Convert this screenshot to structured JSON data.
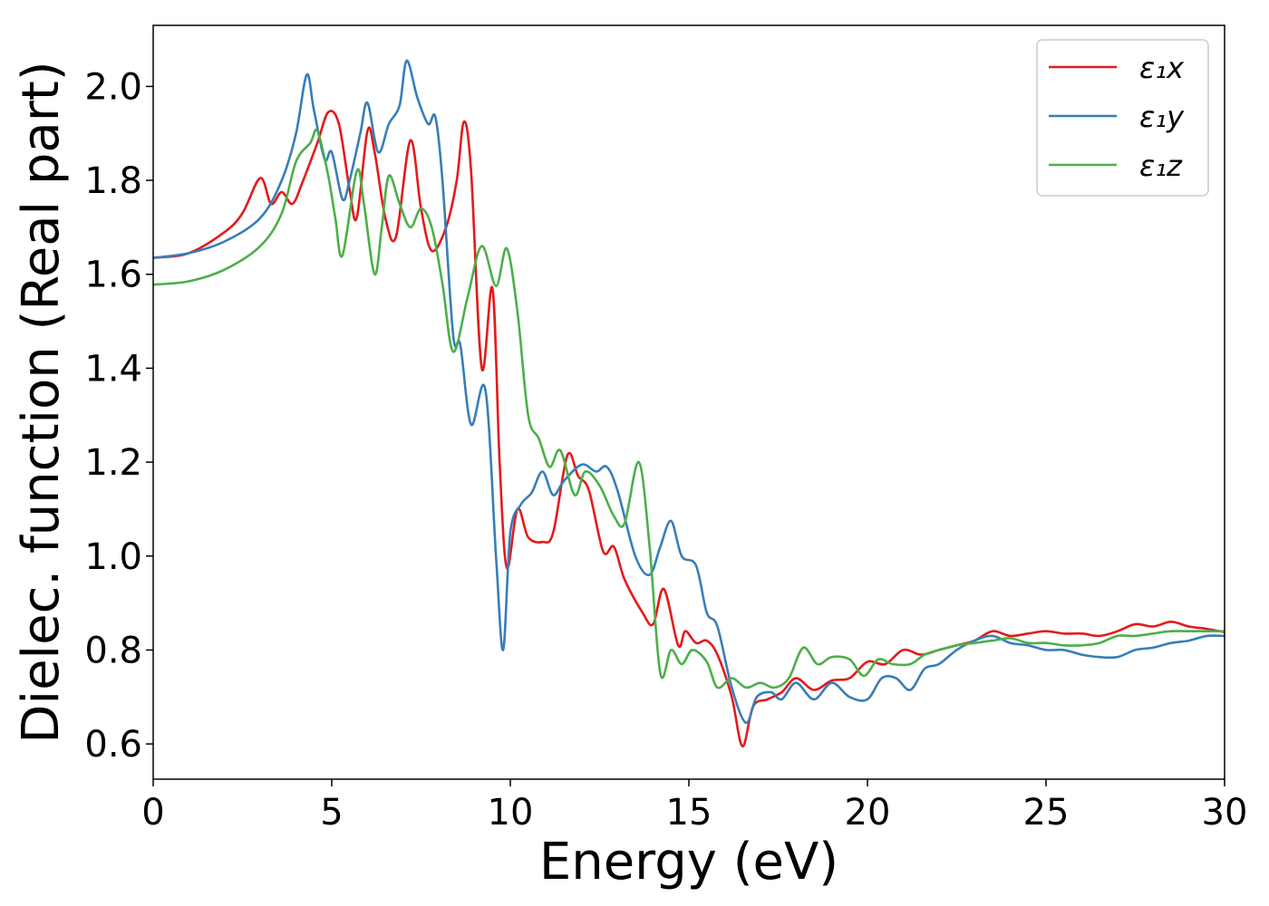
{
  "chart_data": {
    "type": "line",
    "title": "",
    "xlabel": "Energy (eV)",
    "ylabel": "Dielec. function (Real part)",
    "xlim": [
      0,
      30
    ],
    "ylim": [
      0.525,
      2.13
    ],
    "xticks": [
      0,
      5,
      10,
      15,
      20,
      25,
      30
    ],
    "yticks": [
      0.6,
      0.8,
      1.0,
      1.2,
      1.4,
      1.6,
      1.8,
      2.0
    ],
    "ytick_labels": [
      "0.6",
      "0.8",
      "1.0",
      "1.2",
      "1.4",
      "1.6",
      "1.8",
      "2.0"
    ],
    "grid": false,
    "legend_position": "top-right",
    "series": [
      {
        "name": "ε₁x",
        "color": "#e41a1c",
        "points": [
          [
            0,
            1.635
          ],
          [
            1,
            1.645
          ],
          [
            2,
            1.69
          ],
          [
            2.5,
            1.73
          ],
          [
            3,
            1.805
          ],
          [
            3.3,
            1.75
          ],
          [
            3.6,
            1.775
          ],
          [
            3.9,
            1.75
          ],
          [
            4.2,
            1.8
          ],
          [
            4.6,
            1.88
          ],
          [
            4.9,
            1.945
          ],
          [
            5.2,
            1.92
          ],
          [
            5.5,
            1.78
          ],
          [
            5.7,
            1.72
          ],
          [
            6.0,
            1.905
          ],
          [
            6.2,
            1.86
          ],
          [
            6.5,
            1.72
          ],
          [
            6.8,
            1.68
          ],
          [
            7.2,
            1.885
          ],
          [
            7.5,
            1.74
          ],
          [
            7.8,
            1.65
          ],
          [
            8.2,
            1.7
          ],
          [
            8.5,
            1.8
          ],
          [
            8.7,
            1.925
          ],
          [
            8.9,
            1.82
          ],
          [
            9.2,
            1.4
          ],
          [
            9.5,
            1.57
          ],
          [
            9.7,
            1.2
          ],
          [
            9.9,
            0.975
          ],
          [
            10.2,
            1.1
          ],
          [
            10.5,
            1.04
          ],
          [
            10.9,
            1.03
          ],
          [
            11.2,
            1.05
          ],
          [
            11.6,
            1.215
          ],
          [
            11.9,
            1.17
          ],
          [
            12.2,
            1.14
          ],
          [
            12.6,
            1.01
          ],
          [
            12.9,
            1.02
          ],
          [
            13.2,
            0.95
          ],
          [
            13.7,
            0.88
          ],
          [
            14.0,
            0.855
          ],
          [
            14.3,
            0.93
          ],
          [
            14.7,
            0.81
          ],
          [
            14.9,
            0.84
          ],
          [
            15.2,
            0.815
          ],
          [
            15.5,
            0.82
          ],
          [
            15.8,
            0.79
          ],
          [
            16.2,
            0.7
          ],
          [
            16.5,
            0.595
          ],
          [
            16.8,
            0.68
          ],
          [
            17.2,
            0.695
          ],
          [
            17.6,
            0.71
          ],
          [
            18.0,
            0.74
          ],
          [
            18.5,
            0.715
          ],
          [
            19.0,
            0.735
          ],
          [
            19.5,
            0.74
          ],
          [
            20.0,
            0.775
          ],
          [
            20.5,
            0.77
          ],
          [
            21.0,
            0.8
          ],
          [
            21.5,
            0.79
          ],
          [
            22.0,
            0.8
          ],
          [
            22.5,
            0.81
          ],
          [
            23.0,
            0.82
          ],
          [
            23.5,
            0.84
          ],
          [
            24.0,
            0.83
          ],
          [
            24.5,
            0.835
          ],
          [
            25.0,
            0.84
          ],
          [
            25.5,
            0.835
          ],
          [
            26.0,
            0.835
          ],
          [
            26.5,
            0.83
          ],
          [
            27.0,
            0.84
          ],
          [
            27.5,
            0.855
          ],
          [
            28.0,
            0.85
          ],
          [
            28.5,
            0.86
          ],
          [
            29.0,
            0.85
          ],
          [
            29.5,
            0.845
          ],
          [
            30.0,
            0.838
          ]
        ]
      },
      {
        "name": "ε₁y",
        "color": "#377eb8",
        "points": [
          [
            0,
            1.635
          ],
          [
            1,
            1.645
          ],
          [
            2,
            1.67
          ],
          [
            3,
            1.72
          ],
          [
            3.6,
            1.8
          ],
          [
            4.0,
            1.9
          ],
          [
            4.3,
            2.025
          ],
          [
            4.5,
            1.95
          ],
          [
            4.8,
            1.845
          ],
          [
            5.0,
            1.86
          ],
          [
            5.3,
            1.76
          ],
          [
            5.5,
            1.8
          ],
          [
            5.8,
            1.9
          ],
          [
            6.0,
            1.965
          ],
          [
            6.3,
            1.86
          ],
          [
            6.6,
            1.92
          ],
          [
            6.9,
            1.96
          ],
          [
            7.1,
            2.055
          ],
          [
            7.4,
            1.975
          ],
          [
            7.7,
            1.92
          ],
          [
            7.9,
            1.935
          ],
          [
            8.1,
            1.8
          ],
          [
            8.4,
            1.47
          ],
          [
            8.6,
            1.45
          ],
          [
            8.9,
            1.28
          ],
          [
            9.3,
            1.355
          ],
          [
            9.6,
            1.0
          ],
          [
            9.8,
            0.8
          ],
          [
            10.0,
            1.05
          ],
          [
            10.3,
            1.11
          ],
          [
            10.6,
            1.135
          ],
          [
            10.9,
            1.18
          ],
          [
            11.2,
            1.13
          ],
          [
            11.5,
            1.16
          ],
          [
            12.0,
            1.195
          ],
          [
            12.4,
            1.18
          ],
          [
            12.7,
            1.19
          ],
          [
            13.0,
            1.14
          ],
          [
            13.5,
            1.0
          ],
          [
            13.9,
            0.96
          ],
          [
            14.2,
            1.02
          ],
          [
            14.5,
            1.075
          ],
          [
            14.8,
            1.0
          ],
          [
            15.2,
            0.98
          ],
          [
            15.5,
            0.88
          ],
          [
            15.8,
            0.85
          ],
          [
            16.2,
            0.72
          ],
          [
            16.6,
            0.645
          ],
          [
            16.9,
            0.7
          ],
          [
            17.3,
            0.71
          ],
          [
            17.6,
            0.695
          ],
          [
            18.0,
            0.73
          ],
          [
            18.5,
            0.695
          ],
          [
            19.0,
            0.73
          ],
          [
            19.5,
            0.7
          ],
          [
            20.0,
            0.695
          ],
          [
            20.4,
            0.74
          ],
          [
            20.8,
            0.74
          ],
          [
            21.2,
            0.715
          ],
          [
            21.6,
            0.76
          ],
          [
            22.0,
            0.77
          ],
          [
            22.5,
            0.8
          ],
          [
            23.0,
            0.82
          ],
          [
            23.5,
            0.83
          ],
          [
            24.0,
            0.815
          ],
          [
            24.5,
            0.81
          ],
          [
            25.0,
            0.8
          ],
          [
            25.5,
            0.8
          ],
          [
            26.0,
            0.79
          ],
          [
            26.5,
            0.785
          ],
          [
            27.0,
            0.785
          ],
          [
            27.5,
            0.8
          ],
          [
            28.0,
            0.805
          ],
          [
            28.5,
            0.815
          ],
          [
            29.0,
            0.82
          ],
          [
            29.5,
            0.83
          ],
          [
            30.0,
            0.83
          ]
        ]
      },
      {
        "name": "ε₁z",
        "color": "#4daf4a",
        "points": [
          [
            0,
            1.578
          ],
          [
            1,
            1.585
          ],
          [
            2,
            1.61
          ],
          [
            3,
            1.66
          ],
          [
            3.6,
            1.73
          ],
          [
            4.0,
            1.84
          ],
          [
            4.4,
            1.88
          ],
          [
            4.6,
            1.905
          ],
          [
            4.9,
            1.81
          ],
          [
            5.1,
            1.72
          ],
          [
            5.3,
            1.64
          ],
          [
            5.7,
            1.82
          ],
          [
            5.9,
            1.75
          ],
          [
            6.2,
            1.6
          ],
          [
            6.4,
            1.7
          ],
          [
            6.6,
            1.81
          ],
          [
            6.9,
            1.75
          ],
          [
            7.2,
            1.7
          ],
          [
            7.5,
            1.74
          ],
          [
            7.8,
            1.7
          ],
          [
            8.1,
            1.58
          ],
          [
            8.4,
            1.435
          ],
          [
            8.8,
            1.55
          ],
          [
            9.2,
            1.66
          ],
          [
            9.6,
            1.575
          ],
          [
            9.9,
            1.655
          ],
          [
            10.2,
            1.52
          ],
          [
            10.5,
            1.3
          ],
          [
            10.8,
            1.25
          ],
          [
            11.1,
            1.19
          ],
          [
            11.4,
            1.225
          ],
          [
            11.8,
            1.13
          ],
          [
            12.1,
            1.18
          ],
          [
            12.5,
            1.15
          ],
          [
            12.9,
            1.085
          ],
          [
            13.2,
            1.07
          ],
          [
            13.6,
            1.2
          ],
          [
            13.9,
            1.02
          ],
          [
            14.2,
            0.75
          ],
          [
            14.5,
            0.8
          ],
          [
            14.8,
            0.77
          ],
          [
            15.1,
            0.8
          ],
          [
            15.5,
            0.775
          ],
          [
            15.8,
            0.72
          ],
          [
            16.2,
            0.74
          ],
          [
            16.6,
            0.72
          ],
          [
            17.0,
            0.73
          ],
          [
            17.4,
            0.72
          ],
          [
            17.8,
            0.74
          ],
          [
            18.2,
            0.805
          ],
          [
            18.6,
            0.77
          ],
          [
            19.0,
            0.785
          ],
          [
            19.5,
            0.78
          ],
          [
            19.9,
            0.745
          ],
          [
            20.3,
            0.78
          ],
          [
            20.7,
            0.77
          ],
          [
            21.2,
            0.77
          ],
          [
            21.6,
            0.79
          ],
          [
            22.0,
            0.8
          ],
          [
            22.5,
            0.81
          ],
          [
            23.0,
            0.815
          ],
          [
            23.5,
            0.82
          ],
          [
            24.0,
            0.825
          ],
          [
            24.5,
            0.815
          ],
          [
            25.0,
            0.815
          ],
          [
            25.5,
            0.81
          ],
          [
            26.0,
            0.81
          ],
          [
            26.5,
            0.815
          ],
          [
            27.0,
            0.83
          ],
          [
            27.5,
            0.83
          ],
          [
            28.0,
            0.835
          ],
          [
            28.5,
            0.84
          ],
          [
            29.0,
            0.84
          ],
          [
            29.5,
            0.84
          ],
          [
            30.0,
            0.84
          ]
        ]
      }
    ]
  }
}
